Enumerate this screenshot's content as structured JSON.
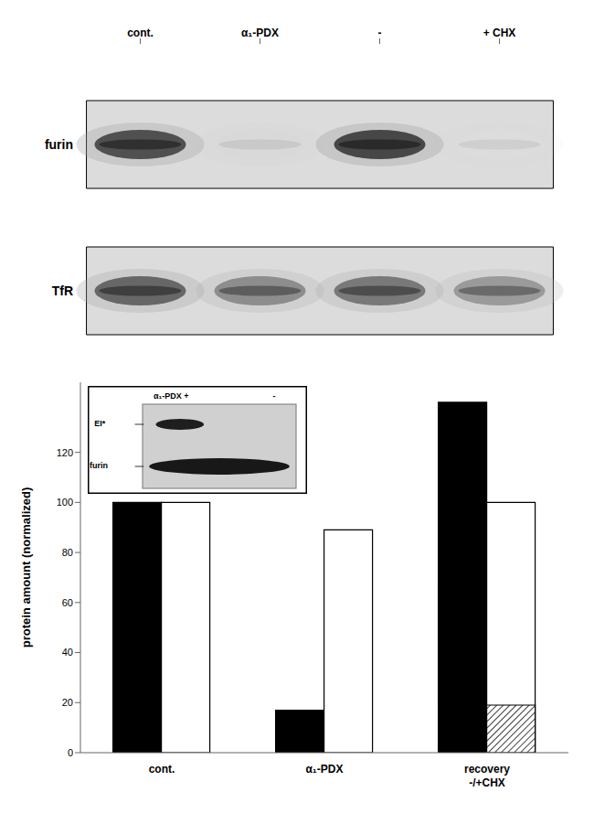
{
  "chart_data": [
    {
      "type": "heatmap",
      "categories": [
        "cont.",
        "α₁-PDX",
        "-",
        "+ CHX"
      ],
      "series": [
        {
          "name": "furin",
          "values": [
            0.85,
            0.18,
            0.88,
            0.15
          ]
        },
        {
          "name": "TfR",
          "values": [
            0.78,
            0.65,
            0.72,
            0.6
          ]
        }
      ],
      "annotations": [
        "recovery"
      ]
    },
    {
      "type": "bar",
      "categories": [
        "cont.",
        "α₁-PDX",
        "recovery\n-/+CHX"
      ],
      "series": [
        {
          "color": "#000000",
          "values": [
            100,
            17,
            140
          ]
        },
        {
          "color": "#ffffff",
          "values": [
            100,
            89,
            100
          ]
        },
        {
          "values": [
            null,
            null,
            19
          ]
        }
      ],
      "ylabel": "protein amount (normalized)",
      "ylim": [
        0,
        148
      ],
      "yticks": [
        0,
        20,
        40,
        60,
        80,
        100,
        120
      ],
      "annotations": [
        "α₁-PDX +",
        "-",
        "EI*",
        "furin"
      ]
    }
  ]
}
